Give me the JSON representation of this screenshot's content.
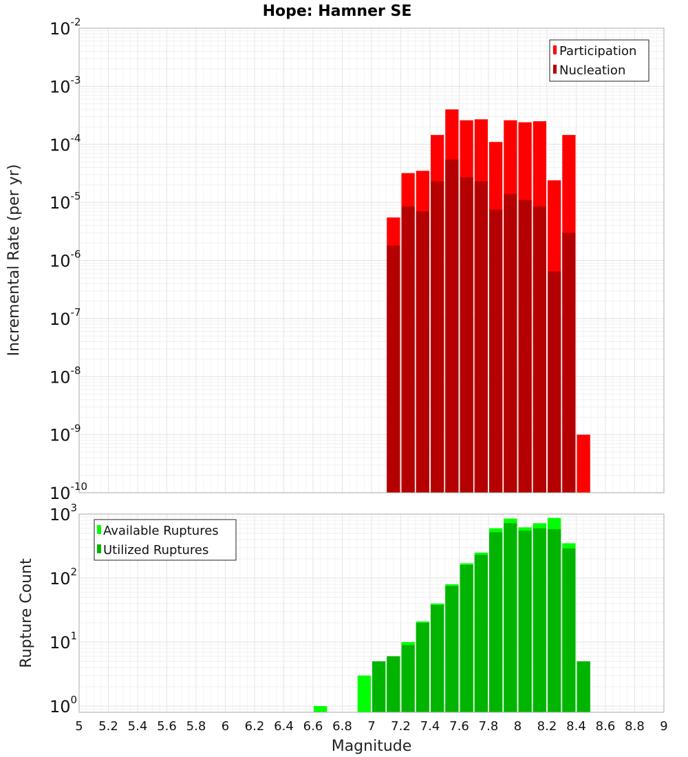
{
  "chart_data": [
    {
      "type": "bar",
      "title": "Hope: Hamner SE",
      "xlabel": "Magnitude",
      "ylabel": "Incremental Rate (per yr)",
      "yscale": "log",
      "xlim": [
        5,
        9
      ],
      "ylim": [
        1e-10,
        0.01
      ],
      "y_tick_exponents": [
        -10,
        -9,
        -8,
        -7,
        -6,
        -5,
        -4,
        -3,
        -2
      ],
      "grid": true,
      "legend_position": "top-right",
      "x": [
        7.15,
        7.25,
        7.35,
        7.45,
        7.55,
        7.65,
        7.75,
        7.85,
        7.95,
        8.05,
        8.15,
        8.25,
        8.35,
        8.45
      ],
      "series": [
        {
          "name": "Participation",
          "color": "#ff0000",
          "values": [
            5.5e-06,
            3.2e-05,
            3.5e-05,
            0.000145,
            0.0004,
            0.00026,
            0.00027,
            0.00011,
            0.00026,
            0.00024,
            0.00025,
            2.4e-05,
            0.000145,
            1e-09
          ]
        },
        {
          "name": "Nucleation",
          "color": "#b40000",
          "values": [
            1.8e-06,
            8.5e-06,
            7e-06,
            2.3e-05,
            5.5e-05,
            2.7e-05,
            2.3e-05,
            7.5e-06,
            1.4e-05,
            1.1e-05,
            8.5e-06,
            6.5e-07,
            3e-06,
            null
          ]
        }
      ]
    },
    {
      "type": "bar",
      "xlabel": "Magnitude",
      "ylabel": "Rupture Count",
      "yscale": "log",
      "xlim": [
        5,
        9
      ],
      "ylim": [
        0.8,
        1000
      ],
      "y_tick_exponents": [
        0,
        1,
        2,
        3
      ],
      "x_ticks": [
        "5",
        "5.2",
        "5.4",
        "5.6",
        "5.8",
        "6",
        "6.2",
        "6.4",
        "6.6",
        "6.8",
        "7",
        "7.2",
        "7.4",
        "7.6",
        "7.8",
        "8",
        "8.2",
        "8.4",
        "8.6",
        "8.8",
        "9"
      ],
      "grid": true,
      "legend_position": "top-left",
      "x": [
        6.65,
        6.95,
        7.05,
        7.15,
        7.25,
        7.35,
        7.45,
        7.55,
        7.65,
        7.75,
        7.85,
        7.95,
        8.05,
        8.15,
        8.25,
        8.35,
        8.45
      ],
      "series": [
        {
          "name": "Available Ruptures",
          "color": "#00ff00",
          "values": [
            1,
            3,
            5,
            6,
            10,
            21,
            40,
            80,
            170,
            250,
            600,
            850,
            620,
            720,
            870,
            350,
            5
          ]
        },
        {
          "name": "Utilized Ruptures",
          "color": "#00b400",
          "values": [
            null,
            null,
            5,
            6,
            9,
            20,
            38,
            75,
            160,
            230,
            520,
            720,
            550,
            600,
            580,
            290,
            5
          ]
        }
      ]
    }
  ]
}
